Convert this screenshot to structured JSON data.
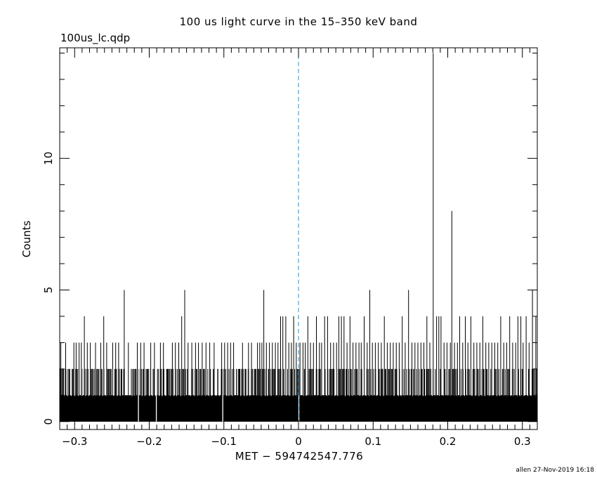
{
  "header": {
    "title": "100 us light curve in the 15–350 keV band",
    "filename": "100us_lc.qdp"
  },
  "footer": {
    "stamp": "allen 27-Nov-2019 16:18"
  },
  "chart_data": {
    "type": "bar",
    "title": "100 us light curve in the 15–350 keV band",
    "xlabel": "MET − 594742547.776",
    "ylabel": "Counts",
    "xlim": [
      -0.32,
      0.32
    ],
    "ylim": [
      -0.3,
      14.2
    ],
    "xticks": [
      -0.3,
      -0.2,
      -0.1,
      0,
      0.1,
      0.2,
      0.3
    ],
    "xtick_labels": [
      "−0.3",
      "−0.2",
      "−0.1",
      "0",
      "0.1",
      "0.2",
      "0.3"
    ],
    "yticks": [
      0,
      5,
      10
    ],
    "ytick_labels": [
      "0",
      "5",
      "10"
    ],
    "bin_width": 0.0001,
    "baseline_level": 1,
    "grid": false,
    "reference_line": {
      "x": 0,
      "color": "#1a9acb",
      "style": "dashed"
    },
    "spikes": [
      {
        "x": -0.3185,
        "y": 3
      },
      {
        "x": -0.312,
        "y": 3
      },
      {
        "x": -0.3065,
        "y": 2
      },
      {
        "x": -0.301,
        "y": 3
      },
      {
        "x": -0.298,
        "y": 3
      },
      {
        "x": -0.294,
        "y": 3
      },
      {
        "x": -0.291,
        "y": 3
      },
      {
        "x": -0.287,
        "y": 4
      },
      {
        "x": -0.283,
        "y": 3
      },
      {
        "x": -0.279,
        "y": 3
      },
      {
        "x": -0.276,
        "y": 2
      },
      {
        "x": -0.272,
        "y": 3
      },
      {
        "x": -0.268,
        "y": 2
      },
      {
        "x": -0.265,
        "y": 3
      },
      {
        "x": -0.261,
        "y": 4
      },
      {
        "x": -0.257,
        "y": 3
      },
      {
        "x": -0.252,
        "y": 2
      },
      {
        "x": -0.249,
        "y": 3
      },
      {
        "x": -0.245,
        "y": 3
      },
      {
        "x": -0.241,
        "y": 3
      },
      {
        "x": -0.237,
        "y": 2
      },
      {
        "x": -0.2335,
        "y": 5
      },
      {
        "x": -0.228,
        "y": 3
      },
      {
        "x": -0.224,
        "y": 2
      },
      {
        "x": -0.219,
        "y": 2
      },
      {
        "x": -0.216,
        "y": 3
      },
      {
        "x": -0.2115,
        "y": 3
      },
      {
        "x": -0.207,
        "y": 3
      },
      {
        "x": -0.203,
        "y": 2
      },
      {
        "x": -0.198,
        "y": 3
      },
      {
        "x": -0.193,
        "y": 3
      },
      {
        "x": -0.189,
        "y": 2
      },
      {
        "x": -0.185,
        "y": 3
      },
      {
        "x": -0.181,
        "y": 3
      },
      {
        "x": -0.176,
        "y": 2
      },
      {
        "x": -0.173,
        "y": 2
      },
      {
        "x": -0.169,
        "y": 3
      },
      {
        "x": -0.165,
        "y": 3
      },
      {
        "x": -0.1605,
        "y": 3
      },
      {
        "x": -0.1565,
        "y": 4
      },
      {
        "x": -0.1525,
        "y": 5
      },
      {
        "x": -0.148,
        "y": 3
      },
      {
        "x": -0.143,
        "y": 3
      },
      {
        "x": -0.138,
        "y": 3
      },
      {
        "x": -0.134,
        "y": 3
      },
      {
        "x": -0.129,
        "y": 3
      },
      {
        "x": -0.124,
        "y": 3
      },
      {
        "x": -0.119,
        "y": 3
      },
      {
        "x": -0.113,
        "y": 3
      },
      {
        "x": -0.108,
        "y": 2
      },
      {
        "x": -0.103,
        "y": 3
      },
      {
        "x": -0.099,
        "y": 3
      },
      {
        "x": -0.095,
        "y": 3
      },
      {
        "x": -0.091,
        "y": 3
      },
      {
        "x": -0.087,
        "y": 3
      },
      {
        "x": -0.083,
        "y": 2
      },
      {
        "x": -0.079,
        "y": 2
      },
      {
        "x": -0.075,
        "y": 3
      },
      {
        "x": -0.071,
        "y": 2
      },
      {
        "x": -0.067,
        "y": 3
      },
      {
        "x": -0.063,
        "y": 3
      },
      {
        "x": -0.059,
        "y": 2
      },
      {
        "x": -0.055,
        "y": 3
      },
      {
        "x": -0.052,
        "y": 3
      },
      {
        "x": -0.049,
        "y": 3
      },
      {
        "x": -0.0465,
        "y": 5
      },
      {
        "x": -0.043,
        "y": 3
      },
      {
        "x": -0.039,
        "y": 3
      },
      {
        "x": -0.035,
        "y": 3
      },
      {
        "x": -0.031,
        "y": 3
      },
      {
        "x": -0.0275,
        "y": 3
      },
      {
        "x": -0.024,
        "y": 4
      },
      {
        "x": -0.021,
        "y": 4
      },
      {
        "x": -0.017,
        "y": 4
      },
      {
        "x": -0.013,
        "y": 3
      },
      {
        "x": -0.0095,
        "y": 3
      },
      {
        "x": -0.0065,
        "y": 4
      },
      {
        "x": -0.003,
        "y": 3
      },
      {
        "x": 0.002,
        "y": 3
      },
      {
        "x": 0.006,
        "y": 3
      },
      {
        "x": 0.009,
        "y": 3
      },
      {
        "x": 0.0125,
        "y": 4
      },
      {
        "x": 0.016,
        "y": 3
      },
      {
        "x": 0.02,
        "y": 3
      },
      {
        "x": 0.024,
        "y": 4
      },
      {
        "x": 0.028,
        "y": 3
      },
      {
        "x": 0.031,
        "y": 3
      },
      {
        "x": 0.035,
        "y": 4
      },
      {
        "x": 0.039,
        "y": 4
      },
      {
        "x": 0.043,
        "y": 3
      },
      {
        "x": 0.047,
        "y": 3
      },
      {
        "x": 0.051,
        "y": 3
      },
      {
        "x": 0.054,
        "y": 4
      },
      {
        "x": 0.0575,
        "y": 4
      },
      {
        "x": 0.061,
        "y": 4
      },
      {
        "x": 0.065,
        "y": 3
      },
      {
        "x": 0.069,
        "y": 4
      },
      {
        "x": 0.073,
        "y": 3
      },
      {
        "x": 0.077,
        "y": 3
      },
      {
        "x": 0.081,
        "y": 3
      },
      {
        "x": 0.084,
        "y": 3
      },
      {
        "x": 0.088,
        "y": 4
      },
      {
        "x": 0.092,
        "y": 3
      },
      {
        "x": 0.0955,
        "y": 5
      },
      {
        "x": 0.099,
        "y": 3
      },
      {
        "x": 0.103,
        "y": 3
      },
      {
        "x": 0.107,
        "y": 3
      },
      {
        "x": 0.111,
        "y": 3
      },
      {
        "x": 0.115,
        "y": 4
      },
      {
        "x": 0.119,
        "y": 3
      },
      {
        "x": 0.123,
        "y": 3
      },
      {
        "x": 0.127,
        "y": 3
      },
      {
        "x": 0.131,
        "y": 3
      },
      {
        "x": 0.135,
        "y": 3
      },
      {
        "x": 0.139,
        "y": 4
      },
      {
        "x": 0.143,
        "y": 3
      },
      {
        "x": 0.1475,
        "y": 5
      },
      {
        "x": 0.152,
        "y": 3
      },
      {
        "x": 0.156,
        "y": 3
      },
      {
        "x": 0.16,
        "y": 3
      },
      {
        "x": 0.164,
        "y": 3
      },
      {
        "x": 0.168,
        "y": 3
      },
      {
        "x": 0.172,
        "y": 4
      },
      {
        "x": 0.176,
        "y": 3
      },
      {
        "x": 0.1805,
        "y": 14
      },
      {
        "x": 0.185,
        "y": 4
      },
      {
        "x": 0.188,
        "y": 4
      },
      {
        "x": 0.191,
        "y": 4
      },
      {
        "x": 0.195,
        "y": 3
      },
      {
        "x": 0.199,
        "y": 3
      },
      {
        "x": 0.2035,
        "y": 3
      },
      {
        "x": 0.2055,
        "y": 8
      },
      {
        "x": 0.209,
        "y": 3
      },
      {
        "x": 0.213,
        "y": 3
      },
      {
        "x": 0.216,
        "y": 4
      },
      {
        "x": 0.22,
        "y": 3
      },
      {
        "x": 0.2235,
        "y": 4
      },
      {
        "x": 0.227,
        "y": 3
      },
      {
        "x": 0.231,
        "y": 4
      },
      {
        "x": 0.235,
        "y": 3
      },
      {
        "x": 0.239,
        "y": 3
      },
      {
        "x": 0.243,
        "y": 3
      },
      {
        "x": 0.247,
        "y": 4
      },
      {
        "x": 0.251,
        "y": 3
      },
      {
        "x": 0.255,
        "y": 3
      },
      {
        "x": 0.259,
        "y": 3
      },
      {
        "x": 0.263,
        "y": 3
      },
      {
        "x": 0.267,
        "y": 3
      },
      {
        "x": 0.271,
        "y": 4
      },
      {
        "x": 0.275,
        "y": 3
      },
      {
        "x": 0.279,
        "y": 3
      },
      {
        "x": 0.283,
        "y": 4
      },
      {
        "x": 0.287,
        "y": 3
      },
      {
        "x": 0.291,
        "y": 3
      },
      {
        "x": 0.294,
        "y": 4
      },
      {
        "x": 0.298,
        "y": 4
      },
      {
        "x": 0.301,
        "y": 3
      },
      {
        "x": 0.305,
        "y": 4
      },
      {
        "x": 0.309,
        "y": 3
      },
      {
        "x": 0.3135,
        "y": 5
      },
      {
        "x": 0.318,
        "y": 4
      }
    ],
    "gaps": [
      -0.2145,
      -0.1905,
      -0.1015,
      0.0005
    ]
  }
}
